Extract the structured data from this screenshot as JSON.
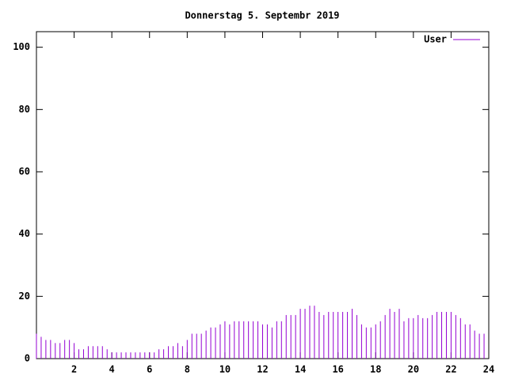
{
  "chart_data": {
    "type": "impulse",
    "title": "Donnerstag 5. Septembr 2019",
    "x": [
      0,
      0.25,
      0.5,
      0.75,
      1,
      1.25,
      1.5,
      1.75,
      2,
      2.25,
      2.5,
      2.75,
      3,
      3.25,
      3.5,
      3.75,
      4,
      4.25,
      4.5,
      4.75,
      5,
      5.25,
      5.5,
      5.75,
      6,
      6.25,
      6.5,
      6.75,
      7,
      7.25,
      7.5,
      7.75,
      8,
      8.25,
      8.5,
      8.75,
      9,
      9.25,
      9.5,
      9.75,
      10,
      10.25,
      10.5,
      10.75,
      11,
      11.25,
      11.5,
      11.75,
      12,
      12.25,
      12.5,
      12.75,
      13,
      13.25,
      13.5,
      13.75,
      14,
      14.25,
      14.5,
      14.75,
      15,
      15.25,
      15.5,
      15.75,
      16,
      16.25,
      16.5,
      16.75,
      17,
      17.25,
      17.5,
      17.75,
      18,
      18.25,
      18.5,
      18.75,
      19,
      19.25,
      19.5,
      19.75,
      20,
      20.25,
      20.5,
      20.75,
      21,
      21.25,
      21.5,
      21.75,
      22,
      22.25,
      22.5,
      22.75,
      23,
      23.25,
      23.5,
      23.75
    ],
    "series": [
      {
        "name": "User",
        "color": "#9400d3",
        "values": [
          8,
          7,
          6,
          6,
          5,
          5,
          6,
          6,
          5,
          3,
          3,
          4,
          4,
          4,
          4,
          3,
          2,
          2,
          2,
          2,
          2,
          2,
          2,
          2,
          2,
          2,
          3,
          3,
          4,
          4,
          5,
          4,
          6,
          8,
          8,
          8,
          9,
          10,
          10,
          11,
          12,
          11,
          12,
          12,
          12,
          12,
          12,
          12,
          11,
          11,
          10,
          12,
          12,
          14,
          14,
          14,
          16,
          16,
          17,
          17,
          15,
          14,
          15,
          15,
          15,
          15,
          15,
          16,
          14,
          11,
          10,
          10,
          11,
          12,
          14,
          16,
          15,
          16,
          12,
          13,
          13,
          14,
          13,
          13,
          14,
          15,
          15,
          15,
          15,
          14,
          13,
          11,
          11,
          9,
          8,
          8
        ]
      }
    ],
    "xlim": [
      0,
      24
    ],
    "xticks": [
      2,
      4,
      6,
      8,
      10,
      12,
      14,
      16,
      18,
      20,
      22,
      24
    ],
    "ylim": [
      0,
      105
    ],
    "yticks": [
      0,
      20,
      40,
      60,
      80,
      100
    ],
    "legend": "upper right"
  }
}
